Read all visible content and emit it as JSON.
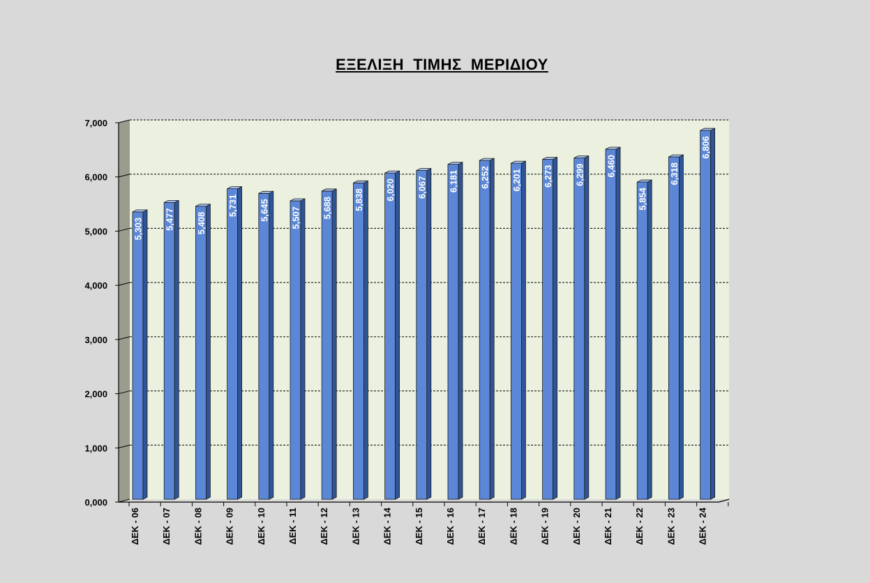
{
  "chart_data": {
    "type": "bar",
    "title": "ΕΞΕΛΙΞΗ  ΤΙΜΗΣ  ΜΕΡΙΔΙΟΥ",
    "xlabel": "",
    "ylabel": "",
    "ylim": [
      0,
      7
    ],
    "yticks": [
      "0,000",
      "1,000",
      "2,000",
      "3,000",
      "4,000",
      "5,000",
      "6,000",
      "7,000"
    ],
    "grid": true,
    "legend": "none",
    "categories": [
      "ΔΕΚ - 06",
      "ΔΕΚ - 07",
      "ΔΕΚ - 08",
      "ΔΕΚ - 09",
      "ΔΕΚ - 10",
      "ΔΕΚ - 11",
      "ΔΕΚ - 12",
      "ΔΕΚ - 13",
      "ΔΕΚ - 14",
      "ΔΕΚ - 15",
      "ΔΕΚ - 16",
      "ΔΕΚ - 17",
      "ΔΕΚ - 18",
      "ΔΕΚ - 19",
      "ΔΕΚ - 20",
      "ΔΕΚ - 21",
      "ΔΕΚ - 22",
      "ΔΕΚ - 23",
      "ΔΕΚ - 24"
    ],
    "values": [
      5.303,
      5.477,
      5.408,
      5.731,
      5.645,
      5.507,
      5.688,
      5.838,
      6.02,
      6.067,
      6.181,
      6.252,
      6.201,
      6.273,
      6.299,
      6.46,
      5.854,
      6.318,
      6.806
    ],
    "data_labels": [
      "5,303",
      "5,477",
      "5,408",
      "5,731",
      "5,645",
      "5,507",
      "5,688",
      "5,838",
      "6,020",
      "6,067",
      "6,181",
      "6,252",
      "6,201",
      "6,273",
      "6,299",
      "6,460",
      "5,854",
      "6,318",
      "6,806"
    ],
    "colors": {
      "bar_front": "#5b87d6",
      "bar_side": "#2f5597",
      "bar_top": "#a9c1ee",
      "plot_back": "#ebf1de",
      "left_wall": "#9a9d8e",
      "background": "#d9d9d9"
    }
  }
}
